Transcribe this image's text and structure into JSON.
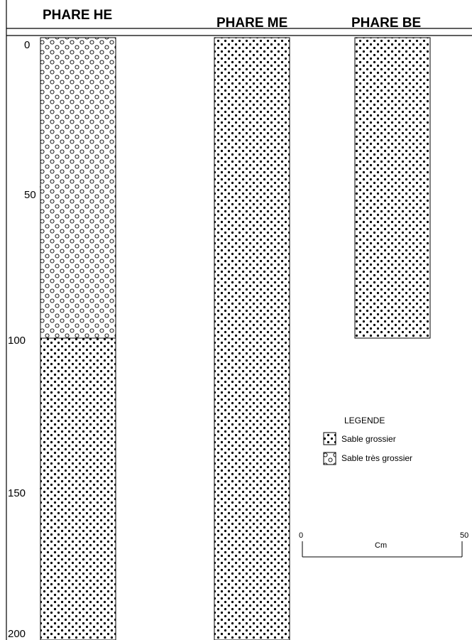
{
  "columns": [
    {
      "name": "PHARE HE",
      "layers": [
        {
          "from": 0,
          "to": 100,
          "material": "Sable très grossier"
        },
        {
          "from": 100,
          "to": 200,
          "material": "Sable grossier"
        }
      ]
    },
    {
      "name": "PHARE ME",
      "layers": [
        {
          "from": 0,
          "to": 200,
          "material": "Sable grossier"
        }
      ]
    },
    {
      "name": "PHARE BE",
      "layers": [
        {
          "from": 0,
          "to": 100,
          "material": "Sable grossier"
        }
      ]
    }
  ],
  "depth_axis": {
    "ticks": [
      "0",
      "50",
      "100",
      "150",
      "200"
    ],
    "min": 0,
    "max": 200
  },
  "legend": {
    "title": "LEGENDE",
    "items": [
      {
        "label": "Sable grossier",
        "pattern": "dots"
      },
      {
        "label": "Sable très grossier",
        "pattern": "circles"
      }
    ]
  },
  "scale_bar": {
    "start_label": "0",
    "end_label": "50",
    "unit_label": "Cm"
  }
}
